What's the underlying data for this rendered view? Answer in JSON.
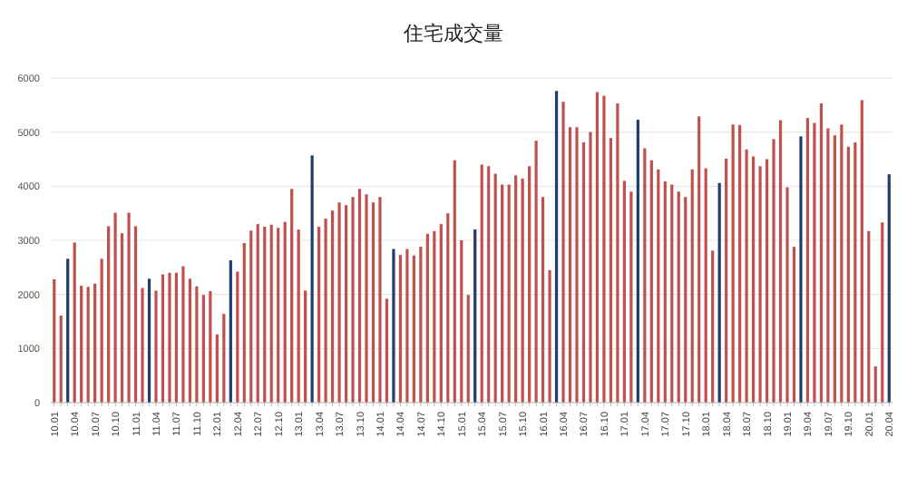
{
  "chart_data": {
    "type": "bar",
    "title": "住宅成交量",
    "categories": [
      "10.01",
      null,
      null,
      "10.04",
      null,
      null,
      "10.07",
      null,
      null,
      "10.10",
      null,
      null,
      "11.01",
      null,
      null,
      "11.04",
      null,
      null,
      "11.07",
      null,
      null,
      "11.10",
      null,
      null,
      "12.01",
      null,
      null,
      "12.04",
      null,
      null,
      "12.07",
      null,
      null,
      "12.10",
      null,
      null,
      "13.01",
      null,
      null,
      "13.04",
      null,
      null,
      "13.07",
      null,
      null,
      "13.10",
      null,
      null,
      "14.01",
      null,
      null,
      "14.04",
      null,
      null,
      "14.07",
      null,
      null,
      "14.10",
      null,
      null,
      "15.01",
      null,
      null,
      "15.04",
      null,
      null,
      "15.07",
      null,
      null,
      "15.10",
      null,
      null,
      "16.01",
      null,
      null,
      "16.04",
      null,
      null,
      "16.07",
      null,
      null,
      "16.10",
      null,
      null,
      "17.01",
      null,
      null,
      "17.04",
      null,
      null,
      "17.07",
      null,
      null,
      "17.10",
      null,
      null,
      "18.01",
      null,
      null,
      "18.04",
      null,
      null,
      "18.07",
      null,
      null,
      "18.10",
      null,
      null,
      "19.01",
      null,
      null,
      "19.04",
      null,
      null,
      "19.07",
      null,
      null,
      "19.10",
      null,
      null,
      "20.01",
      null,
      null,
      "20.04"
    ],
    "values": [
      2280,
      1610,
      2660,
      2960,
      2160,
      2140,
      2200,
      2660,
      3260,
      3510,
      3130,
      3510,
      3260,
      2120,
      2290,
      2070,
      2370,
      2400,
      2400,
      2520,
      2290,
      2150,
      1990,
      2060,
      1260,
      1640,
      2630,
      2420,
      2950,
      3180,
      3300,
      3250,
      3290,
      3230,
      3340,
      3950,
      3200,
      2070,
      4570,
      3250,
      3400,
      3550,
      3700,
      3650,
      3800,
      3950,
      3850,
      3700,
      3800,
      1920,
      2840,
      2730,
      2840,
      2720,
      2880,
      3120,
      3170,
      3300,
      3500,
      4480,
      3000,
      1990,
      3200,
      4400,
      4370,
      4230,
      4030,
      4030,
      4200,
      4140,
      4370,
      4840,
      3800,
      2450,
      5760,
      5560,
      5090,
      5090,
      4810,
      5000,
      5740,
      5670,
      4890,
      5530,
      4100,
      3900,
      5230,
      4700,
      4480,
      4310,
      4090,
      4030,
      3900,
      3800,
      4310,
      5290,
      4330,
      2810,
      4060,
      4510,
      5140,
      5130,
      4680,
      4550,
      4370,
      4500,
      4870,
      5220,
      3980,
      2880,
      4920,
      5260,
      5170,
      5530,
      5070,
      4940,
      5140,
      4730,
      4810,
      5590,
      3170,
      670,
      3330,
      4220
    ],
    "colors": [
      "#c0504d",
      "#c0504d",
      "#1f3d6e",
      "#c0504d",
      "#c0504d",
      "#c0504d",
      "#c0504d",
      "#c0504d",
      "#c0504d",
      "#c0504d",
      "#c0504d",
      "#c0504d",
      "#c0504d",
      "#c0504d",
      "#1f3d6e",
      "#c0504d",
      "#c0504d",
      "#c0504d",
      "#c0504d",
      "#c0504d",
      "#c0504d",
      "#c0504d",
      "#c0504d",
      "#c0504d",
      "#c0504d",
      "#c0504d",
      "#1f3d6e",
      "#c0504d",
      "#c0504d",
      "#c0504d",
      "#c0504d",
      "#c0504d",
      "#c0504d",
      "#c0504d",
      "#c0504d",
      "#c0504d",
      "#c0504d",
      "#c0504d",
      "#1f3d6e",
      "#c0504d",
      "#c0504d",
      "#c0504d",
      "#c0504d",
      "#c0504d",
      "#c0504d",
      "#c0504d",
      "#c0504d",
      "#c0504d",
      "#c0504d",
      "#c0504d",
      "#1f3d6e",
      "#c0504d",
      "#c0504d",
      "#c0504d",
      "#c0504d",
      "#c0504d",
      "#c0504d",
      "#c0504d",
      "#c0504d",
      "#c0504d",
      "#c0504d",
      "#c0504d",
      "#1f3d6e",
      "#c0504d",
      "#c0504d",
      "#c0504d",
      "#c0504d",
      "#c0504d",
      "#c0504d",
      "#c0504d",
      "#c0504d",
      "#c0504d",
      "#c0504d",
      "#c0504d",
      "#1f3d6e",
      "#c0504d",
      "#c0504d",
      "#c0504d",
      "#c0504d",
      "#c0504d",
      "#c0504d",
      "#c0504d",
      "#c0504d",
      "#c0504d",
      "#c0504d",
      "#c0504d",
      "#1f3d6e",
      "#c0504d",
      "#c0504d",
      "#c0504d",
      "#c0504d",
      "#c0504d",
      "#c0504d",
      "#c0504d",
      "#c0504d",
      "#c0504d",
      "#c0504d",
      "#c0504d",
      "#1f3d6e",
      "#c0504d",
      "#c0504d",
      "#c0504d",
      "#c0504d",
      "#c0504d",
      "#c0504d",
      "#c0504d",
      "#c0504d",
      "#c0504d",
      "#c0504d",
      "#c0504d",
      "#1f3d6e",
      "#c0504d",
      "#c0504d",
      "#c0504d",
      "#c0504d",
      "#c0504d",
      "#c0504d",
      "#c0504d",
      "#c0504d",
      "#c0504d",
      "#c0504d",
      "#c0504d",
      "#c0504d",
      "#1f3d6e"
    ],
    "ylim": [
      0,
      6000
    ],
    "yticks": [
      0,
      1000,
      2000,
      3000,
      4000,
      5000,
      6000
    ],
    "grid": "y"
  }
}
